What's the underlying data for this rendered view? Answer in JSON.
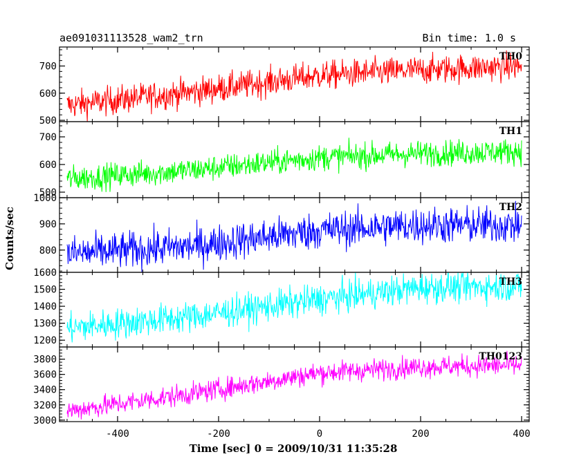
{
  "title_left": "ae091031113528_wam2_trn",
  "title_right": "Bin time: 1.0 s",
  "ylabel": "Counts/sec",
  "xlabel": "Time [sec] 0 = 2009/10/31 11:35:28",
  "chart_data": {
    "type": "line",
    "xlim": [
      -515,
      415
    ],
    "x_ticks": [
      -400,
      -200,
      0,
      200,
      400
    ],
    "x_range": [
      -500,
      400
    ],
    "bin_time": 1.0,
    "panels": [
      {
        "name": "TH0",
        "color": "#ff0000",
        "ylim": [
          495,
          770
        ],
        "y_ticks": [
          500,
          600,
          700
        ],
        "trend": [
          {
            "x": -500,
            "y": 555
          },
          {
            "x": -250,
            "y": 605
          },
          {
            "x": 0,
            "y": 665
          },
          {
            "x": 200,
            "y": 685
          },
          {
            "x": 400,
            "y": 700
          }
        ],
        "noise": 26
      },
      {
        "name": "TH1",
        "color": "#00ff00",
        "ylim": [
          480,
          755
        ],
        "y_ticks": [
          500,
          600,
          700
        ],
        "trend": [
          {
            "x": -500,
            "y": 548
          },
          {
            "x": -250,
            "y": 580
          },
          {
            "x": 0,
            "y": 625
          },
          {
            "x": 200,
            "y": 640
          },
          {
            "x": 400,
            "y": 648
          }
        ],
        "noise": 23
      },
      {
        "name": "TH2",
        "color": "#0000ff",
        "ylim": [
          715,
          1000
        ],
        "y_ticks": [
          800,
          900,
          1000
        ],
        "trend": [
          {
            "x": -500,
            "y": 785
          },
          {
            "x": -250,
            "y": 815
          },
          {
            "x": 0,
            "y": 875
          },
          {
            "x": 200,
            "y": 895
          },
          {
            "x": 400,
            "y": 895
          }
        ],
        "noise": 35
      },
      {
        "name": "TH3",
        "color": "#00ffff",
        "ylim": [
          1160,
          1600
        ],
        "y_ticks": [
          1200,
          1300,
          1400,
          1500,
          1600
        ],
        "trend": [
          {
            "x": -500,
            "y": 1270
          },
          {
            "x": -250,
            "y": 1340
          },
          {
            "x": 0,
            "y": 1440
          },
          {
            "x": 200,
            "y": 1510
          },
          {
            "x": 400,
            "y": 1520
          }
        ],
        "noise": 45
      },
      {
        "name": "TH0123",
        "color": "#ff00ff",
        "ylim": [
          2980,
          3960
        ],
        "y_ticks": [
          3000,
          3200,
          3400,
          3600,
          3800
        ],
        "trend": [
          {
            "x": -500,
            "y": 3120
          },
          {
            "x": -250,
            "y": 3350
          },
          {
            "x": 0,
            "y": 3620
          },
          {
            "x": 200,
            "y": 3700
          },
          {
            "x": 400,
            "y": 3720
          }
        ],
        "noise": 70
      }
    ]
  }
}
